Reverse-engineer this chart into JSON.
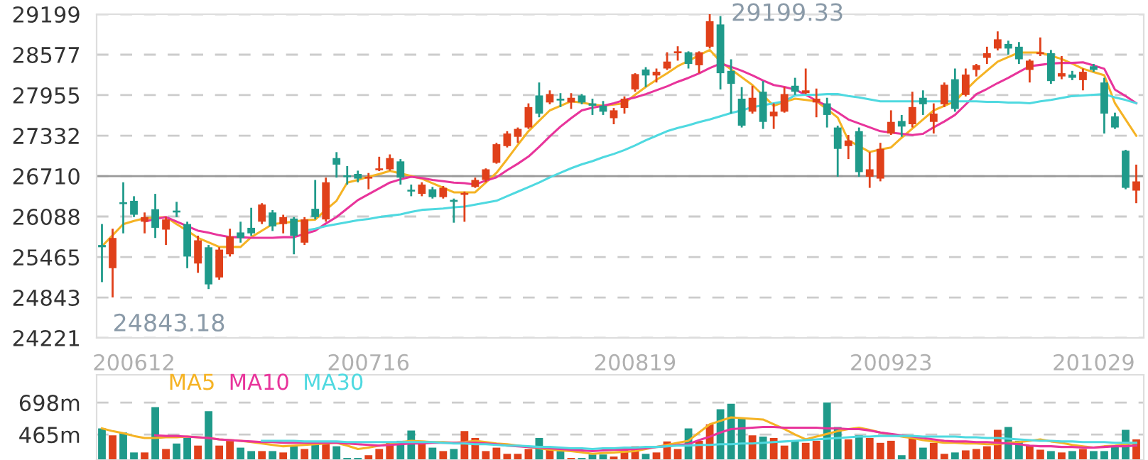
{
  "chart_data": [
    {
      "type": "candlestick",
      "categories": [
        null,
        null,
        null,
        "200612",
        null,
        null,
        null,
        null,
        null,
        null,
        null,
        null,
        null,
        null,
        null,
        null,
        null,
        null,
        null,
        null,
        null,
        null,
        null,
        null,
        null,
        "200716",
        null,
        null,
        null,
        null,
        null,
        null,
        null,
        null,
        null,
        null,
        null,
        null,
        null,
        null,
        null,
        null,
        null,
        null,
        null,
        null,
        null,
        null,
        null,
        null,
        "200819",
        null,
        null,
        null,
        null,
        null,
        null,
        null,
        null,
        null,
        null,
        null,
        null,
        null,
        null,
        null,
        null,
        null,
        null,
        null,
        null,
        null,
        null,
        null,
        "200923",
        null,
        null,
        null,
        null,
        null,
        null,
        null,
        null,
        null,
        null,
        null,
        null,
        null,
        null,
        null,
        null,
        null,
        null,
        "201029",
        null,
        null,
        null,
        null
      ],
      "ohlc": [
        [
          25650,
          25972,
          25079,
          25615
        ],
        [
          25293,
          25900,
          24843.18,
          25758
        ],
        [
          26307,
          26614,
          25829,
          26279
        ],
        [
          26329,
          26400,
          26079,
          26115
        ],
        [
          26008,
          26150,
          25829,
          26079
        ],
        [
          26200,
          26436,
          25758,
          25914
        ],
        [
          25886,
          26079,
          25650,
          26043
        ],
        [
          26179,
          26314,
          26079,
          26150
        ],
        [
          25972,
          26008,
          25293,
          25472
        ],
        [
          25365,
          25793,
          25222,
          25722
        ],
        [
          25615,
          25650,
          24972,
          25044
        ],
        [
          25151,
          25615,
          25115,
          25579
        ],
        [
          25507,
          25900,
          25472,
          25779
        ],
        [
          25843,
          26008,
          25686,
          25758
        ],
        [
          25914,
          26222,
          25793,
          25829
        ],
        [
          26008,
          26293,
          25972,
          26272
        ],
        [
          26150,
          26186,
          25865,
          25936
        ],
        [
          25972,
          26115,
          25829,
          26079
        ],
        [
          26057,
          26079,
          25507,
          25793
        ],
        [
          25686,
          26079,
          25650,
          26043
        ],
        [
          26207,
          26650,
          26043,
          26079
        ],
        [
          26043,
          26686,
          26008,
          26614
        ],
        [
          26986,
          27078,
          26686,
          26886
        ],
        [
          26721,
          26864,
          26578,
          26693
        ],
        [
          26743,
          26793,
          26614,
          26671
        ],
        [
          26671,
          26757,
          26507,
          26700
        ],
        [
          26800,
          27007,
          26786,
          26828
        ],
        [
          26814,
          27043,
          26793,
          26986
        ],
        [
          26936,
          26971,
          26579,
          26686
        ],
        [
          26500,
          26579,
          26400,
          26472
        ],
        [
          26436,
          26614,
          26400,
          26579
        ],
        [
          26507,
          26543,
          26364,
          26386
        ],
        [
          26386,
          26557,
          26364,
          26529
        ],
        [
          26343,
          26364,
          25993,
          26314
        ],
        [
          26421,
          26472,
          26007,
          26450
        ],
        [
          26543,
          26686,
          26529,
          26650
        ],
        [
          26650,
          26828,
          26614,
          26814
        ],
        [
          26914,
          27221,
          26900,
          27200
        ],
        [
          27171,
          27400,
          27150,
          27364
        ],
        [
          27314,
          27457,
          27221,
          27435
        ],
        [
          27457,
          27828,
          27435,
          27771
        ],
        [
          27950,
          28149,
          27614,
          27671
        ],
        [
          27842,
          28028,
          27814,
          27971
        ],
        [
          27900,
          27985,
          27771,
          27871
        ],
        [
          27842,
          27985,
          27742,
          27914
        ],
        [
          27950,
          27971,
          27814,
          27842
        ],
        [
          27828,
          27900,
          27650,
          27792
        ],
        [
          27792,
          27864,
          27650,
          27700
        ],
        [
          27600,
          27757,
          27507,
          27721
        ],
        [
          27757,
          27935,
          27671,
          27900
        ],
        [
          28042,
          28292,
          28007,
          28278
        ],
        [
          28349,
          28385,
          28078,
          28257
        ],
        [
          28257,
          28364,
          28149,
          28314
        ],
        [
          28364,
          28614,
          28342,
          28471
        ],
        [
          28599,
          28706,
          28485,
          28628
        ],
        [
          28614,
          28628,
          28364,
          28435
        ],
        [
          28414,
          28628,
          28292,
          28614
        ],
        [
          28699,
          29199.33,
          28671,
          29092
        ],
        [
          29042,
          29170,
          28042,
          28292
        ],
        [
          28328,
          28506,
          27671,
          28128
        ],
        [
          27900,
          28078,
          27457,
          27485
        ],
        [
          27700,
          28099,
          27671,
          27914
        ],
        [
          28007,
          28171,
          27435,
          27543
        ],
        [
          27628,
          27828,
          27435,
          27700
        ],
        [
          27700,
          28078,
          27685,
          27971
        ],
        [
          28099,
          28221,
          27957,
          28007
        ],
        [
          27985,
          28364,
          27971,
          28028
        ],
        [
          27842,
          28056,
          27614,
          27900
        ],
        [
          27828,
          27914,
          27457,
          27650
        ],
        [
          27457,
          27485,
          26700,
          27128
        ],
        [
          27171,
          27343,
          26971,
          27257
        ],
        [
          27400,
          27457,
          26700,
          26771
        ],
        [
          26700,
          27078,
          26529,
          26814
        ],
        [
          26671,
          27221,
          26629,
          27128
        ],
        [
          27364,
          27721,
          27343,
          27543
        ],
        [
          27557,
          27650,
          27314,
          27471
        ],
        [
          27507,
          28007,
          27457,
          27771
        ],
        [
          27914,
          28028,
          27650,
          27814
        ],
        [
          27543,
          27828,
          27364,
          27671
        ],
        [
          27814,
          28149,
          27771,
          28114
        ],
        [
          28199,
          28364,
          27700,
          27742
        ],
        [
          27957,
          28364,
          27935,
          28271
        ],
        [
          28342,
          28435,
          28242,
          28414
        ],
        [
          28528,
          28699,
          28435,
          28599
        ],
        [
          28671,
          28935,
          28642,
          28813
        ],
        [
          28742,
          28792,
          28578,
          28671
        ],
        [
          28699,
          28771,
          28435,
          28506
        ],
        [
          28342,
          28506,
          28149,
          28485
        ],
        [
          28585,
          28842,
          28556,
          28614
        ],
        [
          28599,
          28649,
          28128,
          28171
        ],
        [
          28242,
          28556,
          28199,
          28292
        ],
        [
          28271,
          28328,
          28185,
          28221
        ],
        [
          28185,
          28364,
          28028,
          28314
        ],
        [
          28399,
          28435,
          28314,
          28342
        ],
        [
          28149,
          28221,
          27364,
          27671
        ],
        [
          27628,
          27685,
          27435,
          27457
        ],
        [
          27100,
          27114,
          26507,
          26529
        ],
        [
          26486,
          26886,
          26293,
          26628
        ]
      ],
      "colors": [
        "#1f9a8a",
        "#e0401a",
        "#1f9a8a",
        "#1f9a8a",
        "#e0401a",
        "#1f9a8a",
        "#e0401a",
        "#1f9a8a",
        "#1f9a8a",
        "#e0401a",
        "#1f9a8a",
        "#e0401a",
        "#e0401a",
        "#1f9a8a",
        "#1f9a8a",
        "#e0401a",
        "#1f9a8a",
        "#e0401a",
        "#1f9a8a",
        "#e0401a",
        "#1f9a8a",
        "#e0401a",
        "#1f9a8a",
        "#1f9a8a",
        "#1f9a8a",
        "#e0401a",
        "#e0401a",
        "#e0401a",
        "#1f9a8a",
        "#1f9a8a",
        "#e0401a",
        "#1f9a8a",
        "#e0401a",
        "#1f9a8a",
        "#e0401a",
        "#e0401a",
        "#e0401a",
        "#e0401a",
        "#e0401a",
        "#e0401a",
        "#e0401a",
        "#1f9a8a",
        "#e0401a",
        "#1f9a8a",
        "#e0401a",
        "#1f9a8a",
        "#1f9a8a",
        "#1f9a8a",
        "#e0401a",
        "#e0401a",
        "#e0401a",
        "#1f9a8a",
        "#e0401a",
        "#e0401a",
        "#e0401a",
        "#1f9a8a",
        "#e0401a",
        "#e0401a",
        "#1f9a8a",
        "#1f9a8a",
        "#1f9a8a",
        "#e0401a",
        "#1f9a8a",
        "#e0401a",
        "#e0401a",
        "#1f9a8a",
        "#e0401a",
        "#e0401a",
        "#1f9a8a",
        "#1f9a8a",
        "#e0401a",
        "#1f9a8a",
        "#e0401a",
        "#e0401a",
        "#e0401a",
        "#1f9a8a",
        "#e0401a",
        "#1f9a8a",
        "#e0401a",
        "#e0401a",
        "#1f9a8a",
        "#e0401a",
        "#e0401a",
        "#e0401a",
        "#e0401a",
        "#1f9a8a",
        "#1f9a8a",
        "#e0401a",
        "#e0401a",
        "#1f9a8a",
        "#e0401a",
        "#1f9a8a",
        "#e0401a",
        "#1f9a8a",
        "#1f9a8a",
        "#1f9a8a",
        "#1f9a8a",
        "#e0401a"
      ],
      "series": [
        {
          "type": "line",
          "color": "#f5b324",
          "values": [
            25630,
            25800,
            25970,
            26020,
            26060,
            26070,
            26080,
            25970,
            25870,
            25760,
            25690,
            25620,
            25620,
            25620,
            25770,
            25870,
            25970,
            25990,
            26010,
            26030,
            26040,
            26190,
            26330,
            26610,
            26650,
            26700,
            26740,
            26790,
            26750,
            26710,
            26670,
            26600,
            26530,
            26460,
            26460,
            26460,
            26610,
            26760,
            26970,
            27190,
            27400,
            27560,
            27720,
            27790,
            27860,
            27840,
            27810,
            27790,
            27810,
            27830,
            27960,
            28080,
            28190,
            28290,
            28400,
            28480,
            28570,
            28650,
            28470,
            28350,
            28230,
            28110,
            27950,
            27790,
            27850,
            27900,
            27880,
            27860,
            27740,
            27610,
            27260,
            27170,
            27080,
            27120,
            27150,
            27300,
            27440,
            27580,
            27720,
            27790,
            27860,
            28030,
            28190,
            28330,
            28470,
            28540,
            28610,
            28610,
            28610,
            28560,
            28510,
            28440,
            28360,
            28310,
            28260,
            27830,
            27580,
            27330
          ]
        },
        {
          "type": "line",
          "color": "#e8349b",
          "values": [
            null,
            null,
            null,
            null,
            26010,
            26050,
            26080,
            26010,
            25940,
            25870,
            25840,
            25800,
            25770,
            25770,
            25760,
            25760,
            25760,
            25770,
            25770,
            25820,
            25870,
            25980,
            26080,
            26210,
            26340,
            26430,
            26520,
            26610,
            26660,
            26700,
            26680,
            26650,
            26630,
            26610,
            26600,
            26580,
            26640,
            26690,
            26800,
            26900,
            27010,
            27160,
            27320,
            27470,
            27600,
            27720,
            27760,
            27790,
            27830,
            27880,
            27920,
            27970,
            28030,
            28090,
            28160,
            28220,
            28290,
            28370,
            28440,
            28390,
            28330,
            28260,
            28180,
            28110,
            28080,
            28040,
            27960,
            27870,
            27790,
            27690,
            27580,
            27520,
            27460,
            27400,
            27380,
            27360,
            27340,
            27360,
            27460,
            27550,
            27650,
            27810,
            27970,
            28050,
            28140,
            28220,
            28310,
            28400,
            28420,
            28440,
            28450,
            28450,
            28460,
            28410,
            28360,
            28040,
            27940,
            27830
          ]
        },
        {
          "type": "line",
          "color": "#4fd9e0",
          "values": [
            null,
            null,
            null,
            null,
            null,
            null,
            null,
            null,
            null,
            null,
            null,
            null,
            null,
            null,
            null,
            null,
            null,
            null,
            null,
            25870,
            25900,
            25940,
            25970,
            26000,
            26030,
            26050,
            26080,
            26100,
            26120,
            26160,
            26190,
            26200,
            26210,
            26230,
            26240,
            26270,
            26300,
            26330,
            26400,
            26470,
            26540,
            26610,
            26690,
            26760,
            26830,
            26890,
            26940,
            27000,
            27050,
            27110,
            27180,
            27260,
            27330,
            27400,
            27450,
            27490,
            27540,
            27580,
            27630,
            27680,
            27720,
            27770,
            27800,
            27830,
            27860,
            27950,
            27960,
            27960,
            27970,
            27970,
            27940,
            27920,
            27890,
            27860,
            27860,
            27860,
            27860,
            27860,
            27860,
            27860,
            27860,
            27860,
            27860,
            27850,
            27850,
            27840,
            27840,
            27830,
            27860,
            27880,
            27910,
            27940,
            27950,
            27960,
            27970,
            27920,
            27880,
            27830
          ]
        }
      ],
      "ylim": [
        24221,
        29199.33
      ],
      "yticks": [
        24221,
        24843,
        25465,
        26088,
        26710,
        27332,
        27955,
        28577,
        {
          "value": 29199.33,
          "label": "29199"
        }
      ],
      "grid": "y",
      "ref_lines": [
        {
          "axis": "y",
          "value": 26710,
          "color": "#999999"
        }
      ],
      "annotations": [
        "29199.33",
        "24843.18"
      ]
    },
    {
      "type": "bar",
      "categories": [
        null,
        null,
        null,
        null,
        null,
        null,
        null,
        null,
        null,
        null,
        null,
        null,
        null,
        null,
        null,
        null,
        null,
        null,
        null,
        null,
        null,
        null,
        null,
        null,
        null,
        null,
        null,
        null,
        null,
        null,
        null,
        null,
        null,
        null,
        null,
        null,
        null,
        null,
        null,
        null,
        null,
        null,
        null,
        null,
        null,
        null,
        null,
        null,
        null,
        null,
        null,
        null,
        null,
        null,
        null,
        null,
        null,
        null,
        null,
        null,
        null,
        null,
        null,
        null,
        null,
        null,
        null,
        null,
        null,
        null,
        null,
        null,
        null,
        null,
        null,
        null,
        null,
        null,
        null,
        null,
        null,
        null,
        null,
        null,
        null,
        null,
        null,
        null,
        null,
        null,
        null,
        null,
        null,
        null,
        null,
        null,
        null,
        null
      ],
      "series": [
        {
          "type": "bar",
          "values": [
            510,
            460,
            480,
            335,
            335,
            665,
            360,
            400,
            440,
            385,
            635,
            385,
            430,
            370,
            345,
            345,
            345,
            335,
            380,
            360,
            415,
            415,
            380,
            295,
            295,
            315,
            360,
            405,
            420,
            495,
            420,
            370,
            345,
            360,
            490,
            440,
            345,
            370,
            325,
            325,
            360,
            440,
            355,
            345,
            295,
            295,
            320,
            320,
            305,
            360,
            380,
            325,
            335,
            415,
            360,
            510,
            420,
            540,
            650,
            690,
            580,
            460,
            450,
            440,
            385,
            420,
            405,
            420,
            698,
            520,
            430,
            460,
            440,
            405,
            420,
            315,
            440,
            370,
            405,
            325,
            335,
            350,
            360,
            380,
            500,
            520,
            420,
            385,
            355,
            345,
            335,
            345,
            360,
            345,
            345,
            385,
            500,
            430
          ],
          "colors": [
            "#1f9a8a",
            "#e0401a",
            "#1f9a8a",
            "#1f9a8a",
            "#e0401a",
            "#1f9a8a",
            "#e0401a",
            "#1f9a8a",
            "#1f9a8a",
            "#e0401a",
            "#1f9a8a",
            "#e0401a",
            "#e0401a",
            "#1f9a8a",
            "#1f9a8a",
            "#e0401a",
            "#1f9a8a",
            "#e0401a",
            "#1f9a8a",
            "#e0401a",
            "#1f9a8a",
            "#e0401a",
            "#1f9a8a",
            "#1f9a8a",
            "#1f9a8a",
            "#e0401a",
            "#e0401a",
            "#e0401a",
            "#1f9a8a",
            "#1f9a8a",
            "#e0401a",
            "#1f9a8a",
            "#e0401a",
            "#1f9a8a",
            "#e0401a",
            "#e0401a",
            "#e0401a",
            "#e0401a",
            "#e0401a",
            "#e0401a",
            "#e0401a",
            "#1f9a8a",
            "#e0401a",
            "#1f9a8a",
            "#e0401a",
            "#1f9a8a",
            "#1f9a8a",
            "#1f9a8a",
            "#e0401a",
            "#e0401a",
            "#e0401a",
            "#1f9a8a",
            "#e0401a",
            "#e0401a",
            "#e0401a",
            "#1f9a8a",
            "#e0401a",
            "#e0401a",
            "#1f9a8a",
            "#1f9a8a",
            "#1f9a8a",
            "#e0401a",
            "#1f9a8a",
            "#e0401a",
            "#e0401a",
            "#1f9a8a",
            "#e0401a",
            "#e0401a",
            "#1f9a8a",
            "#1f9a8a",
            "#e0401a",
            "#1f9a8a",
            "#e0401a",
            "#e0401a",
            "#e0401a",
            "#1f9a8a",
            "#e0401a",
            "#1f9a8a",
            "#e0401a",
            "#e0401a",
            "#1f9a8a",
            "#e0401a",
            "#e0401a",
            "#e0401a",
            "#e0401a",
            "#1f9a8a",
            "#1f9a8a",
            "#e0401a",
            "#e0401a",
            "#1f9a8a",
            "#e0401a",
            "#1f9a8a",
            "#e0401a",
            "#1f9a8a",
            "#1f9a8a",
            "#1f9a8a",
            "#1f9a8a",
            "#e0401a"
          ]
        },
        {
          "type": "line",
          "name": "MA5",
          "color": "#f5b324",
          "values": [
            510,
            490,
            475,
            455,
            440,
            440,
            445,
            445,
            450,
            445,
            440,
            430,
            425,
            420,
            410,
            400,
            390,
            380,
            385,
            390,
            395,
            400,
            405,
            385,
            360,
            370,
            385,
            395,
            410,
            420,
            415,
            410,
            410,
            405,
            410,
            420,
            410,
            400,
            395,
            385,
            375,
            365,
            355,
            350,
            345,
            335,
            325,
            330,
            335,
            340,
            345,
            360,
            375,
            390,
            405,
            420,
            480,
            540,
            565,
            590,
            585,
            580,
            575,
            540,
            505,
            465,
            430,
            450,
            470,
            490,
            505,
            515,
            500,
            480,
            465,
            450,
            440,
            425,
            415,
            405,
            405,
            400,
            400,
            395,
            395,
            405,
            410,
            420,
            430,
            415,
            405,
            390,
            380,
            370,
            380,
            385,
            395,
            405
          ]
        },
        {
          "type": "line",
          "name": "MA10",
          "color": "#e8349b",
          "values": [
            null,
            null,
            null,
            null,
            null,
            460,
            455,
            455,
            450,
            445,
            440,
            430,
            425,
            420,
            415,
            410,
            410,
            405,
            405,
            405,
            405,
            405,
            405,
            400,
            395,
            390,
            385,
            390,
            395,
            400,
            400,
            405,
            405,
            405,
            405,
            405,
            400,
            395,
            385,
            380,
            375,
            370,
            365,
            360,
            355,
            350,
            345,
            350,
            355,
            355,
            360,
            365,
            375,
            380,
            390,
            395,
            425,
            450,
            480,
            505,
            510,
            515,
            520,
            520,
            515,
            515,
            515,
            515,
            510,
            510,
            505,
            505,
            495,
            480,
            470,
            460,
            450,
            440,
            430,
            420,
            415,
            415,
            410,
            410,
            405,
            400,
            395,
            385,
            380,
            380,
            375,
            375,
            370,
            370,
            375,
            380,
            380,
            385
          ]
        },
        {
          "type": "line",
          "name": "MA30",
          "color": "#4fd9e0",
          "values": [
            null,
            null,
            null,
            null,
            null,
            null,
            null,
            null,
            null,
            null,
            null,
            null,
            null,
            null,
            null,
            420,
            420,
            420,
            420,
            415,
            415,
            415,
            415,
            410,
            410,
            410,
            410,
            410,
            410,
            410,
            410,
            410,
            405,
            400,
            400,
            395,
            395,
            390,
            385,
            385,
            380,
            375,
            375,
            370,
            365,
            365,
            360,
            365,
            365,
            370,
            370,
            375,
            375,
            380,
            385,
            385,
            390,
            390,
            395,
            395,
            400,
            400,
            405,
            410,
            415,
            420,
            425,
            430,
            435,
            440,
            445,
            450,
            450,
            455,
            455,
            455,
            455,
            450,
            450,
            450,
            450,
            445,
            445,
            440,
            440,
            435,
            430,
            425,
            420,
            420,
            415,
            415,
            410,
            410,
            410,
            405,
            405,
            405
          ]
        }
      ],
      "ylim": [
        280,
        900
      ],
      "yticks": [
        {
          "value": 465,
          "label": "465m"
        },
        {
          "value": 698,
          "label": "698m"
        }
      ],
      "grid": "y",
      "legend": "top left",
      "tick_labels": "y"
    }
  ]
}
